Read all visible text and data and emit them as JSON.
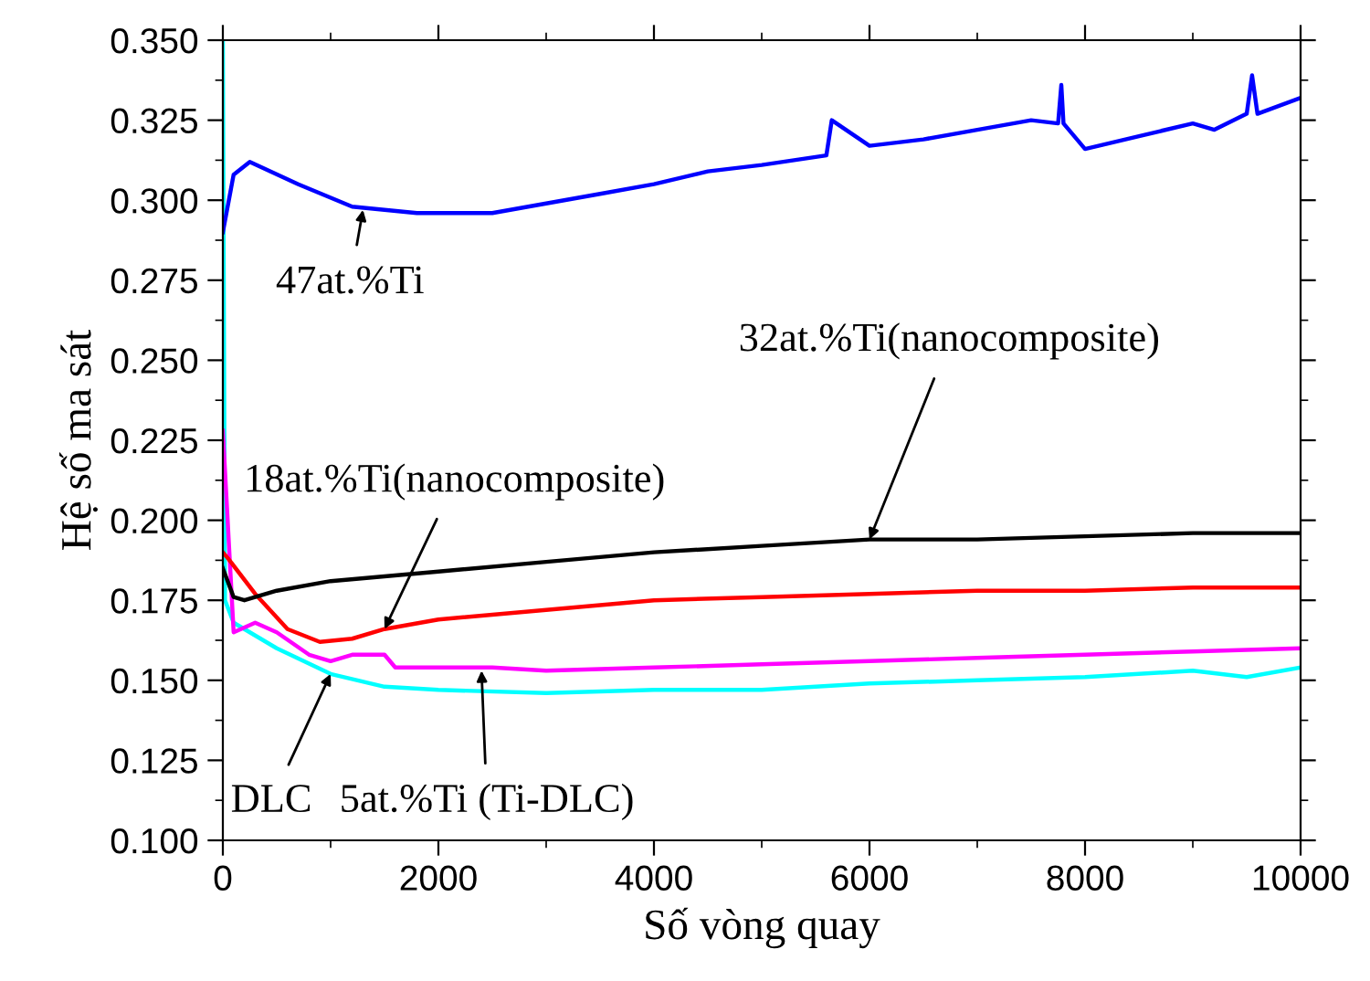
{
  "chart_data": {
    "type": "line",
    "xlabel": "Số vòng quay",
    "ylabel": "Hệ số ma sát",
    "xlim": [
      0,
      10000
    ],
    "xticks": [
      0,
      2000,
      4000,
      6000,
      8000,
      10000
    ],
    "ylim": [
      0.1,
      0.35
    ],
    "yticks": [
      {
        "value": 0.1,
        "label": "0.100"
      },
      {
        "value": 0.125,
        "label": "0.125"
      },
      {
        "value": 0.15,
        "label": "0.150"
      },
      {
        "value": 0.175,
        "label": "0.175"
      },
      {
        "value": 0.2,
        "label": "0.200"
      },
      {
        "value": 0.225,
        "label": "0.225"
      },
      {
        "value": 0.25,
        "label": "0.250"
      },
      {
        "value": 0.275,
        "label": "0.275"
      },
      {
        "value": 0.3,
        "label": "0.300"
      },
      {
        "value": 0.325,
        "label": "0.325"
      },
      {
        "value": 0.35,
        "label": "0.350"
      }
    ],
    "grid": false,
    "legend": false,
    "marker": "none",
    "line_style": "solid",
    "series": [
      {
        "color": "#00ffff",
        "x": [
          0,
          20,
          100,
          500,
          1000,
          1500,
          2000,
          3000,
          4000,
          5000,
          6000,
          7000,
          8000,
          9000,
          9500,
          10000
        ],
        "values": [
          0.35,
          0.175,
          0.168,
          0.16,
          0.152,
          0.148,
          0.147,
          0.146,
          0.147,
          0.147,
          0.149,
          0.15,
          0.151,
          0.153,
          0.151,
          0.154
        ]
      },
      {
        "color": "#ff00ff",
        "x": [
          0,
          100,
          300,
          500,
          800,
          1000,
          1200,
          1500,
          1600,
          2500,
          3000,
          4000,
          5000,
          6000,
          7000,
          8000,
          9000,
          10000
        ],
        "values": [
          0.228,
          0.165,
          0.168,
          0.165,
          0.158,
          0.156,
          0.158,
          0.158,
          0.154,
          0.154,
          0.153,
          0.154,
          0.155,
          0.156,
          0.157,
          0.158,
          0.159,
          0.16
        ]
      },
      {
        "color": "#ff0000",
        "x": [
          0,
          50,
          300,
          600,
          900,
          1200,
          1500,
          2000,
          3000,
          4000,
          5000,
          6000,
          7000,
          8000,
          9000,
          10000
        ],
        "values": [
          0.19,
          0.188,
          0.177,
          0.166,
          0.162,
          0.163,
          0.166,
          0.169,
          0.172,
          0.175,
          0.176,
          0.177,
          0.178,
          0.178,
          0.179,
          0.179
        ]
      },
      {
        "color": "#000000",
        "x": [
          0,
          100,
          200,
          500,
          1000,
          2000,
          3000,
          4000,
          5000,
          6000,
          7000,
          8000,
          9000,
          10000
        ],
        "values": [
          0.185,
          0.176,
          0.175,
          0.178,
          0.181,
          0.184,
          0.187,
          0.19,
          0.192,
          0.194,
          0.194,
          0.195,
          0.196,
          0.196
        ]
      },
      {
        "color": "#0000ff",
        "x": [
          0,
          100,
          250,
          700,
          1200,
          1800,
          2500,
          3000,
          3500,
          4000,
          4500,
          5000,
          5600,
          5650,
          6000,
          6500,
          7000,
          7500,
          7750,
          7780,
          7800,
          8000,
          8500,
          9000,
          9200,
          9500,
          9550,
          9600,
          10000
        ],
        "values": [
          0.29,
          0.308,
          0.312,
          0.305,
          0.298,
          0.296,
          0.296,
          0.299,
          0.302,
          0.305,
          0.309,
          0.311,
          0.314,
          0.325,
          0.317,
          0.319,
          0.322,
          0.325,
          0.324,
          0.336,
          0.324,
          0.316,
          0.32,
          0.324,
          0.322,
          0.327,
          0.339,
          0.327,
          0.332
        ]
      }
    ],
    "annotations": [
      {
        "text": "47at.%Ti",
        "x": 1300,
        "y": 0.297
      },
      {
        "text": "32at.%Ti(nanocomposite)",
        "x": 6000,
        "y": 0.194
      },
      {
        "text": "18at.%Ti(nanocomposite)",
        "x": 1500,
        "y": 0.166
      },
      {
        "text": "DLC",
        "x": 1000,
        "y": 0.152
      },
      {
        "text": "5at.%Ti (Ti-DLC)",
        "x": 2400,
        "y": 0.153
      }
    ]
  }
}
